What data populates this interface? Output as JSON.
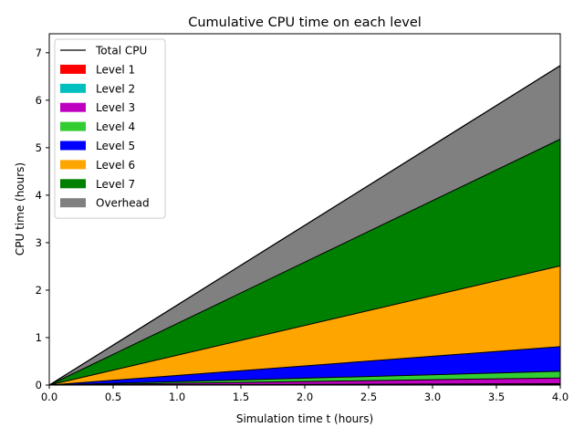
{
  "chart_data": {
    "type": "area",
    "title": "Cumulative CPU time on each level",
    "xlabel": "Simulation time t (hours)",
    "ylabel": "CPU time (hours)",
    "xlim": [
      0,
      4
    ],
    "ylim": [
      0,
      7.4
    ],
    "xticks": [
      0.0,
      0.5,
      1.0,
      1.5,
      2.0,
      2.5,
      3.0,
      3.5,
      4.0
    ],
    "xtick_labels": [
      "0.0",
      "0.5",
      "1.0",
      "1.5",
      "2.0",
      "2.5",
      "3.0",
      "3.5",
      "4.0"
    ],
    "yticks": [
      0,
      1,
      2,
      3,
      4,
      5,
      6,
      7
    ],
    "ytick_labels": [
      "0",
      "1",
      "2",
      "3",
      "4",
      "5",
      "6",
      "7"
    ],
    "grid": false,
    "legend_position": "top-left",
    "x": [
      0,
      4
    ],
    "total_line": {
      "name": "Total CPU",
      "color": "#000000",
      "values": [
        0,
        6.73
      ]
    },
    "series": [
      {
        "name": "Level 1",
        "color": "#ff0000",
        "values": [
          0,
          0.01
        ]
      },
      {
        "name": "Level 2",
        "color": "#00bfbf",
        "values": [
          0,
          0.02
        ]
      },
      {
        "name": "Level 3",
        "color": "#bf00bf",
        "values": [
          0,
          0.12
        ]
      },
      {
        "name": "Level 4",
        "color": "#32cd32",
        "values": [
          0,
          0.14
        ]
      },
      {
        "name": "Level 5",
        "color": "#0000ff",
        "values": [
          0,
          0.52
        ]
      },
      {
        "name": "Level 6",
        "color": "#ffa500",
        "values": [
          0,
          1.7
        ]
      },
      {
        "name": "Level 7",
        "color": "#008000",
        "values": [
          0,
          2.67
        ]
      },
      {
        "name": "Overhead",
        "color": "#808080",
        "values": [
          0,
          1.55
        ]
      }
    ]
  }
}
